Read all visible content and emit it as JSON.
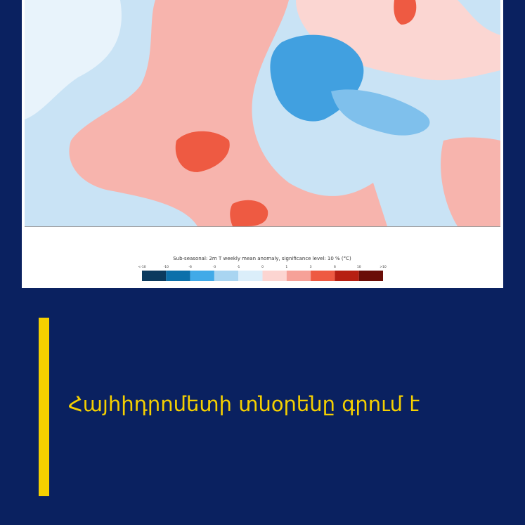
{
  "map": {
    "caption": "Sub-seasonal: 2m T weekly mean anomaly, significance level: 10 % (°C)",
    "scale_labels": [
      "<-10",
      "-10",
      "-6",
      "-3",
      "-1",
      "0",
      "1",
      "3",
      "6",
      "10",
      ">10"
    ],
    "scale_colors": [
      "#0b3a5e",
      "#0c70aa",
      "#41aae8",
      "#a9d5f1",
      "#dbeefa",
      "#fcd5d1",
      "#f6a198",
      "#ee5a42",
      "#b61f12",
      "#6a0d07"
    ]
  },
  "headline": "Հայհիդրոմետի տնօրենը գրում է"
}
